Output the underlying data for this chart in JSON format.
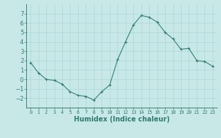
{
  "x": [
    0,
    1,
    2,
    3,
    4,
    5,
    6,
    7,
    8,
    9,
    10,
    11,
    12,
    13,
    14,
    15,
    16,
    17,
    18,
    19,
    20,
    21,
    22,
    23
  ],
  "y": [
    1.8,
    0.7,
    0.0,
    -0.1,
    -0.5,
    -1.3,
    -1.7,
    -1.8,
    -2.2,
    -1.3,
    -0.6,
    2.1,
    4.0,
    5.8,
    6.8,
    6.6,
    6.1,
    5.0,
    4.3,
    3.2,
    3.3,
    2.0,
    1.9,
    1.4
  ],
  "xlabel": "Humidex (Indice chaleur)",
  "ylim": [
    -3,
    8
  ],
  "xlim": [
    -0.5,
    23.5
  ],
  "yticks": [
    -2,
    -1,
    0,
    1,
    2,
    3,
    4,
    5,
    6,
    7
  ],
  "xticks": [
    0,
    1,
    2,
    3,
    4,
    5,
    6,
    7,
    8,
    9,
    10,
    11,
    12,
    13,
    14,
    15,
    16,
    17,
    18,
    19,
    20,
    21,
    22,
    23
  ],
  "xtick_labels": [
    "0",
    "1",
    "2",
    "3",
    "4",
    "5",
    "6",
    "7",
    "8",
    "9",
    "10",
    "11",
    "12",
    "13",
    "14",
    "15",
    "16",
    "17",
    "18",
    "19",
    "20",
    "21",
    "22",
    "23"
  ],
  "line_color": "#2e7d6e",
  "marker": "+",
  "bg_color": "#c8e8e8",
  "grid_color": "#aad4d4",
  "axis_color": "#2e7d6e"
}
